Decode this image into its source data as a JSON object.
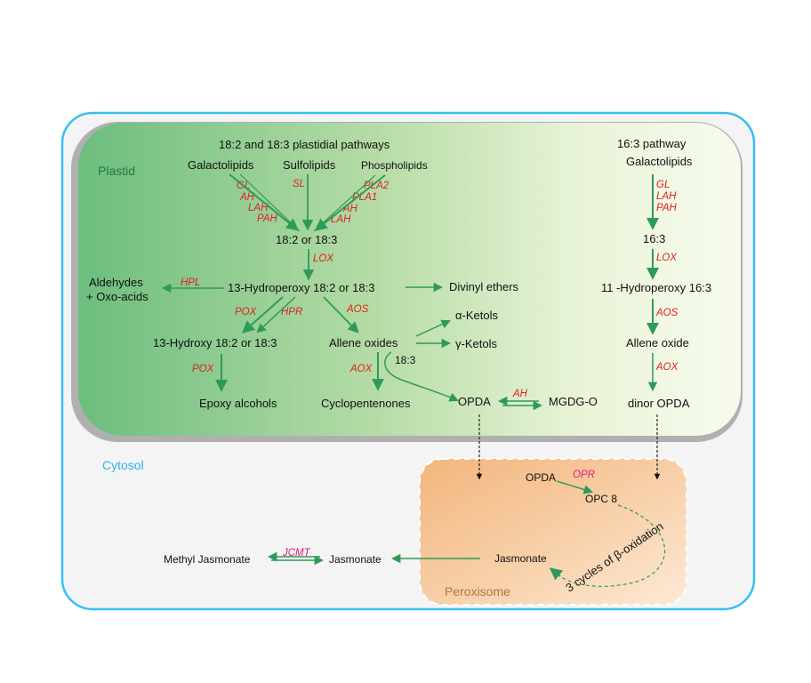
{
  "compartments": {
    "plastid": "Plastid",
    "cytosol": "Cytosol",
    "peroxisome": "Peroxisome"
  },
  "colors": {
    "plastid_label": "#1f7a3c",
    "cytosol_label": "#29b6e8",
    "peroxisome_label": "#b07840",
    "arrow": "#2e9a5a",
    "enzyme": "#e0201b",
    "enzyme_alt": "#e0197a"
  },
  "left_pathway": {
    "title": "18:2 and 18:3 plastidial pathways",
    "galactolipids": "Galactolipids",
    "sulfolipids": "Sulfolipids",
    "phospholipids": "Phospholipids",
    "enz_gl": "GL",
    "enz_ah": "AH",
    "enz_lah": "LAH",
    "enz_pah": "PAH",
    "enz_sl": "SL",
    "enz_pla2": "PLA2",
    "enz_pla1": "PLA1",
    "enz_ah2": "AH",
    "enz_lah2": "LAH",
    "fatty_acid": "18:2 or 18:3",
    "enz_lox": "LOX",
    "hydroperoxy": "13-Hydroperoxy 18:2 or 18:3",
    "enz_hpl": "HPL",
    "aldehydes_1": "Aldehydes",
    "aldehydes_2": "+ Oxo-acids",
    "divinyl": "Divinyl ethers",
    "enz_pox": "POX",
    "enz_hpr": "HPR",
    "enz_aos": "AOS",
    "hydroxy": "13-Hydroxy 18:2 or 18:3",
    "allene": "Allene oxides",
    "alpha_ketols": "α-Ketols",
    "gamma_ketols": "γ-Ketols",
    "enz_pox2": "POX",
    "enz_aox": "AOX",
    "label_183": "18:3",
    "epoxy": "Epoxy alcohols",
    "cyclopentenones": "Cyclopentenones",
    "opda": "OPDA",
    "enz_ah3": "AH",
    "mgdg": "MGDG-O"
  },
  "right_pathway": {
    "title": "16:3 pathway",
    "galactolipids": "Galactolipids",
    "enz_gl": "GL",
    "enz_lah": "LAH",
    "enz_pah": "PAH",
    "fatty_acid": "16:3",
    "enz_lox": "LOX",
    "hydroperoxy": "11 -Hydroperoxy 16:3",
    "enz_aos": "AOS",
    "allene": "Allene oxide",
    "enz_aox": "AOX",
    "dinor": "dinor OPDA"
  },
  "peroxisome_content": {
    "opda": "OPDA",
    "enz_opr": "OPR",
    "opc8": "OPC 8",
    "beta_text": "3 cycles of β-oxidation",
    "jasmonate": "Jasmonate"
  },
  "cytosol_content": {
    "jasmonate": "Jasmonate",
    "enz_jcmt": "JCMT",
    "methyl_jasmonate": "Methyl Jasmonate"
  }
}
